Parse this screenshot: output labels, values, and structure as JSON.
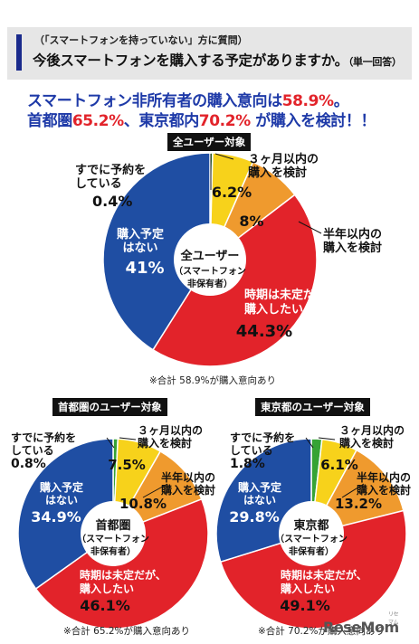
{
  "header": {
    "subtitle": "（「スマートフォンを持っていない」方に質問）",
    "question": "今後スマートフォンを購入する予定がありますか。",
    "question_note": "（単一回答）"
  },
  "headline": {
    "line1_pre": "スマートフォン非所有者の購入意向は",
    "line1_val": "58.9%",
    "line1_post": "。",
    "line2_a": "首都圏",
    "line2_a_val": "65.2%",
    "line2_b": "、東京都内",
    "line2_b_val": "70.2%",
    "line2_post": " が購入を検討！！"
  },
  "colors": {
    "reserved": "#36a335",
    "within3": "#f7d21b",
    "halfyear": "#ef9a2e",
    "undecided": "#e2232a",
    "none": "#1f4ea3",
    "navy": "#1e3aa8",
    "red": "#e2232a"
  },
  "chart_data": [
    {
      "type": "pie",
      "title": "全ユーザー対象",
      "center_label": [
        "全ユーザー",
        "（スマートフォン",
        "非保有者）"
      ],
      "slices": [
        {
          "label": "すでに予約をしている",
          "value": 0.4
        },
        {
          "label": "３ヶ月以内の購入を検討",
          "value": 6.2
        },
        {
          "label": "半年以内の購入を検討",
          "value": 8
        },
        {
          "label": "時期は未定だが、購入したい",
          "value": 44.3
        },
        {
          "label": "購入予定はない",
          "value": 41
        }
      ],
      "value_labels": [
        "0.4%",
        "6.2%",
        "8%",
        "44.3%",
        "41%"
      ],
      "note": "※合計 58.9%が購入意向あり"
    },
    {
      "type": "pie",
      "title": "首都圏のユーザー対象",
      "center_label": [
        "首都圏",
        "（スマートフォン",
        "非保有者）"
      ],
      "slices": [
        {
          "label": "すでに予約をしている",
          "value": 0.8
        },
        {
          "label": "３ヶ月以内の購入を検討",
          "value": 7.5
        },
        {
          "label": "半年以内の購入を検討",
          "value": 10.8
        },
        {
          "label": "時期は未定だが、購入したい",
          "value": 46.1
        },
        {
          "label": "購入予定はない",
          "value": 34.9
        }
      ],
      "value_labels": [
        "0.8%",
        "7.5%",
        "10.8%",
        "46.1%",
        "34.9%"
      ],
      "note": "※合計 65.2%が購入意向あり"
    },
    {
      "type": "pie",
      "title": "東京都のユーザー対象",
      "center_label": [
        "東京都",
        "（スマートフォン",
        "非保有者）"
      ],
      "slices": [
        {
          "label": "すでに予約をしている",
          "value": 1.8
        },
        {
          "label": "３ヶ月以内の購入を検討",
          "value": 6.1
        },
        {
          "label": "半年以内の購入を検討",
          "value": 13.2
        },
        {
          "label": "時期は未定だが、購入したい",
          "value": 49.1
        },
        {
          "label": "購入予定はない",
          "value": 29.8
        }
      ],
      "value_labels": [
        "1.8%",
        "6.1%",
        "13.2%",
        "49.1%",
        "29.8%"
      ],
      "note": "※合計 70.2%が購入意向あり"
    }
  ],
  "brand": {
    "logo": "ResеMom",
    "small": "リセマム"
  }
}
